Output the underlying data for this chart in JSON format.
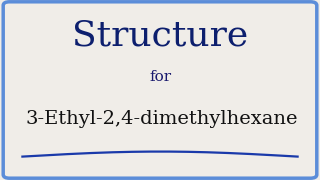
{
  "title": "Structure",
  "subtitle": "for",
  "compound": "3-Ethyl-2,4-dimethylhexane",
  "title_color": "#0d1f6e",
  "subtitle_color": "#1a1a6e",
  "compound_color": "#111111",
  "border_color": "#5b8dd9",
  "background_color": "#f0ede8",
  "title_fontsize": 26,
  "subtitle_fontsize": 11,
  "compound_fontsize": 14,
  "wave_color": "#1a3aaa",
  "border_linewidth": 2.5
}
